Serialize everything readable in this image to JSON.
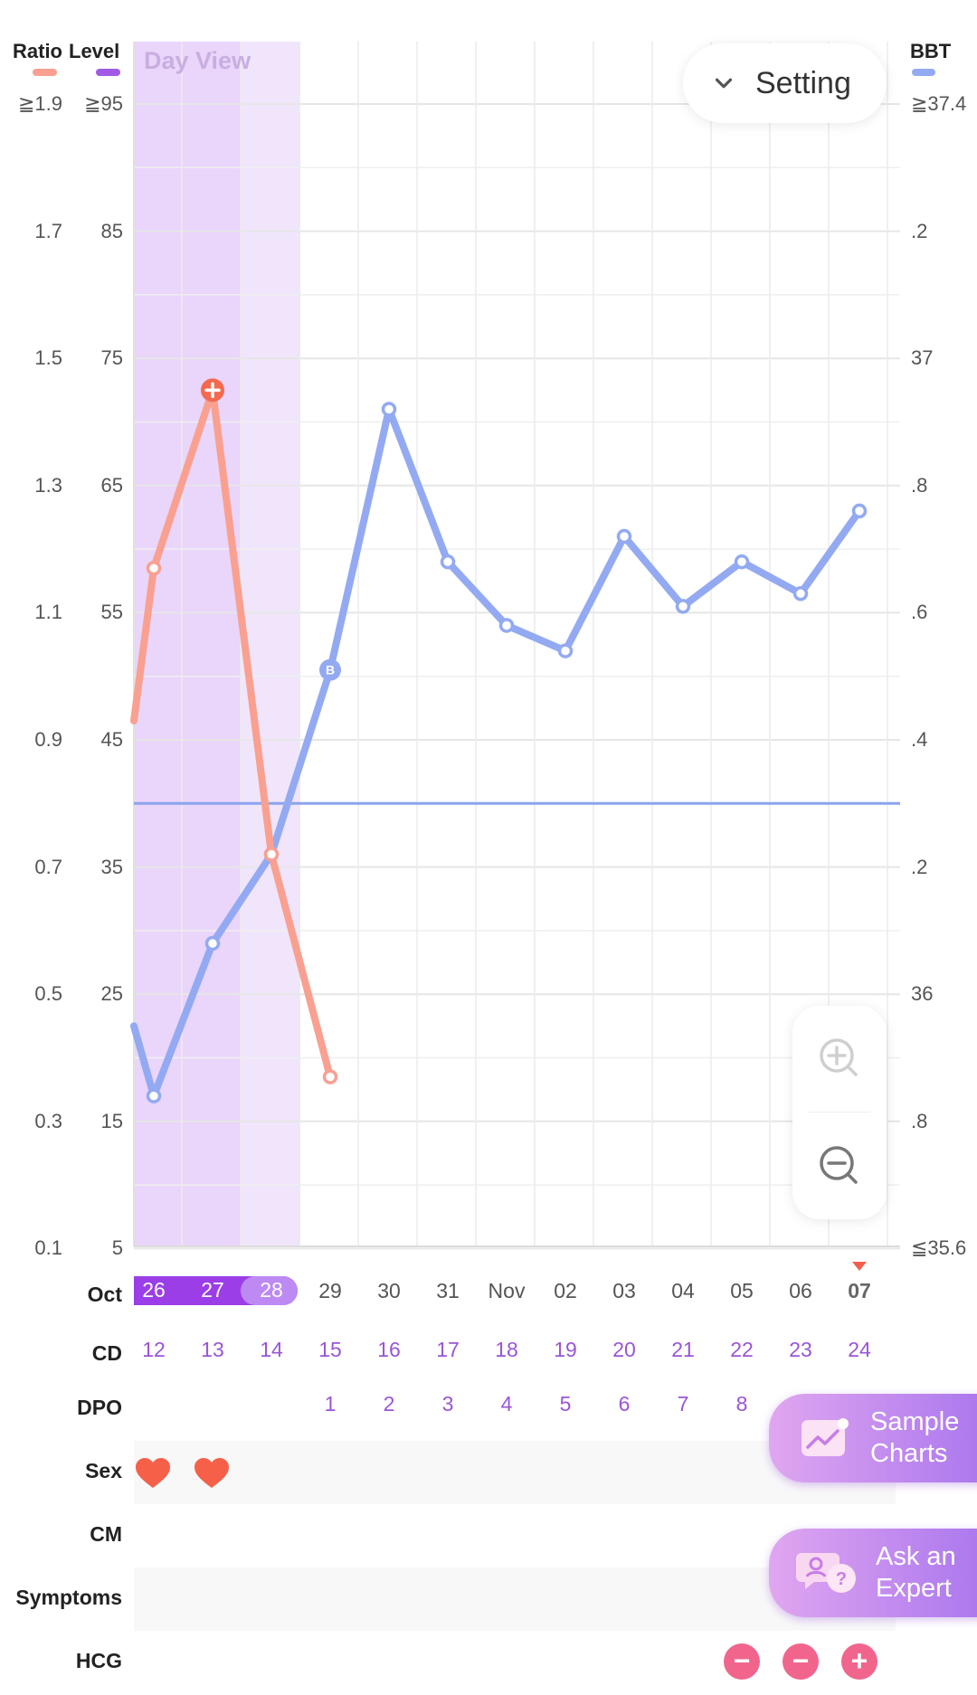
{
  "header": {
    "ratio_label": "Ratio",
    "level_label": "Level",
    "bbt_label": "BBT",
    "day_view": "Day View",
    "setting_label": "Setting"
  },
  "colors": {
    "ratio": "#f9a090",
    "level": "#a05ae6",
    "bbt": "#93aaf2",
    "fertile_dark": "#ead5fb",
    "fertile_light": "#f1e5fc",
    "hcg": "#f1658d"
  },
  "axes": {
    "ratio_ticks": [
      "≧1.9",
      "1.7",
      "1.5",
      "1.3",
      "1.1",
      "0.9",
      "0.7",
      "0.5",
      "0.3",
      "0.1"
    ],
    "level_ticks": [
      "≧95",
      "85",
      "75",
      "65",
      "55",
      "45",
      "35",
      "25",
      "15",
      "5"
    ],
    "bbt_ticks": [
      "≧37.4",
      ".2",
      "37",
      ".8",
      ".6",
      ".4",
      ".2",
      "36",
      ".8",
      "≦35.6"
    ]
  },
  "dates": {
    "month_label": "Oct",
    "days": [
      "26",
      "27",
      "28",
      "29",
      "30",
      "31",
      "Nov",
      "02",
      "03",
      "04",
      "05",
      "06",
      "07"
    ],
    "today": "07"
  },
  "rows": {
    "cd_label": "CD",
    "cd": [
      "12",
      "13",
      "14",
      "15",
      "16",
      "17",
      "18",
      "19",
      "20",
      "21",
      "22",
      "23",
      "24"
    ],
    "dpo_label": "DPO",
    "dpo": [
      "",
      "",
      "",
      "1",
      "2",
      "3",
      "4",
      "5",
      "6",
      "7",
      "8",
      "",
      ""
    ],
    "sex_label": "Sex",
    "cm_label": "CM",
    "symptoms_label": "Symptoms",
    "hcg_label": "HCG",
    "hcg": [
      "",
      "",
      "",
      "",
      "",
      "",
      "",
      "",
      "",
      "",
      "−",
      "−",
      "+"
    ]
  },
  "buttons": {
    "sample_charts": [
      "Sample",
      "Charts"
    ],
    "ask_expert": [
      "Ask an",
      "Expert"
    ]
  },
  "chart_data": {
    "type": "line",
    "title": "",
    "x": [
      "Oct 26",
      "Oct 27",
      "Oct 28",
      "Oct 29",
      "Oct 30",
      "Oct 31",
      "Nov 01",
      "Nov 02",
      "Nov 03",
      "Nov 04",
      "Nov 05",
      "Nov 06",
      "Nov 07"
    ],
    "series": [
      {
        "name": "Ratio",
        "axis": "ratio",
        "values": [
          1.17,
          1.45,
          0.72,
          0.37,
          null,
          null,
          null,
          null,
          null,
          null,
          null,
          null,
          null
        ],
        "peak_index": 1
      },
      {
        "name": "BBT",
        "axis": "bbt",
        "values": [
          35.84,
          36.08,
          36.22,
          36.51,
          36.92,
          36.68,
          36.58,
          36.54,
          36.72,
          36.61,
          36.68,
          36.63,
          36.76
        ],
        "marker_b_index": 3
      }
    ],
    "coverline": 36.3,
    "fertile_window": [
      "Oct 26",
      "Oct 28"
    ],
    "peak_days": [
      "Oct 26",
      "Oct 27"
    ],
    "ratio_range": [
      0.1,
      1.9
    ],
    "level_range": [
      5,
      95
    ],
    "bbt_range": [
      35.6,
      37.4
    ],
    "grid": true
  }
}
